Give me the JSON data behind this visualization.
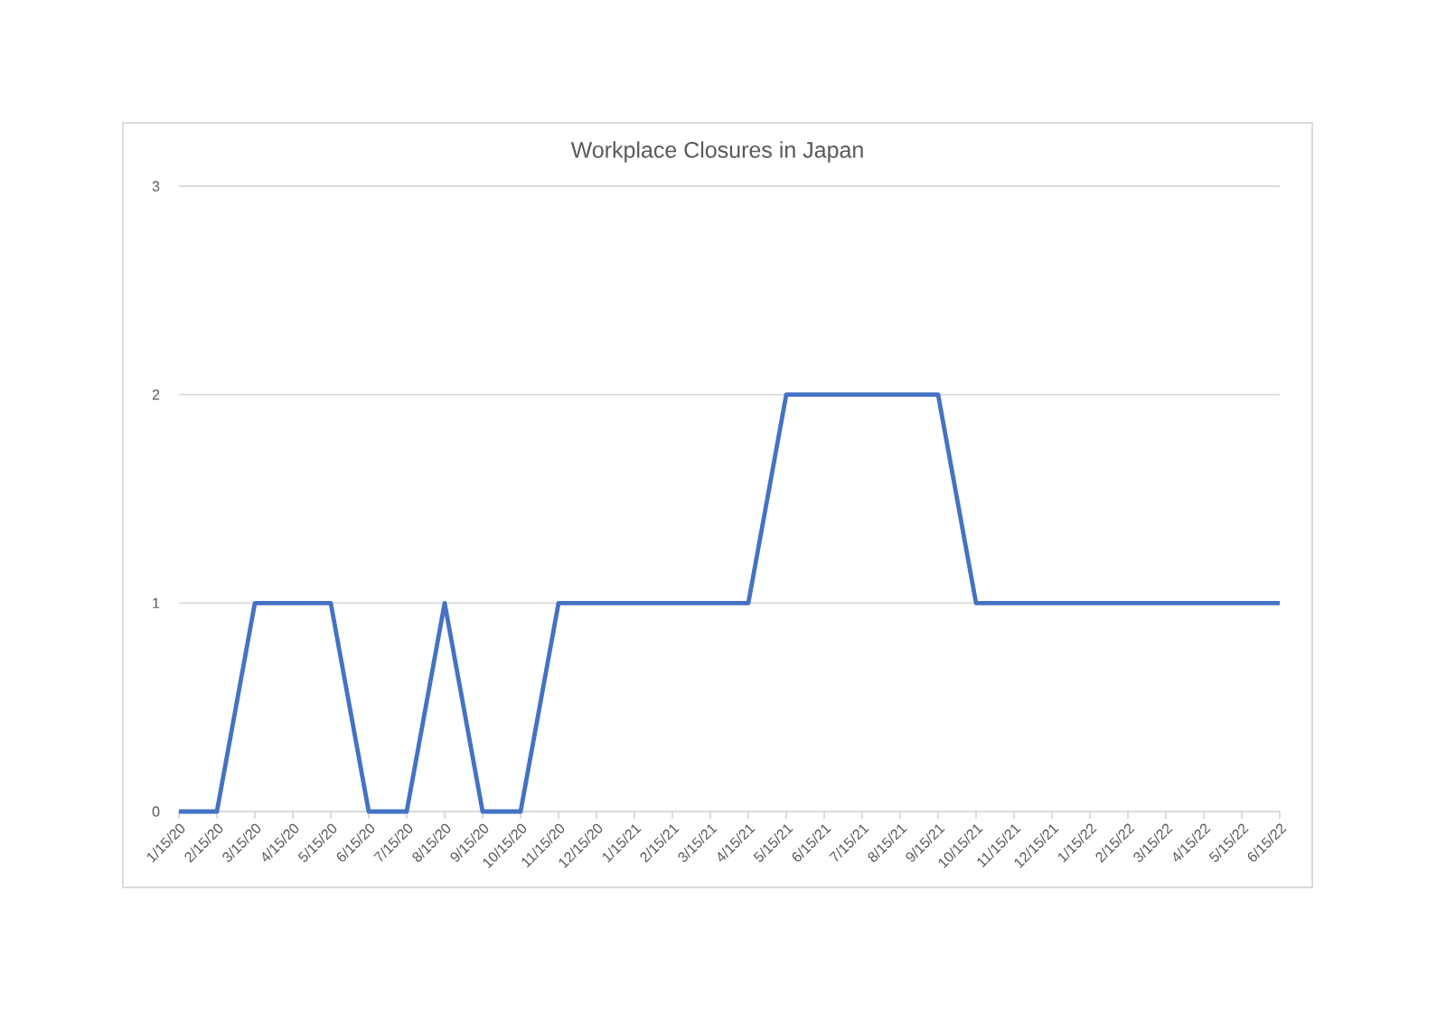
{
  "chart_data": {
    "type": "line",
    "title": "Workplace Closures in Japan",
    "categories": [
      "1/15/20",
      "2/15/20",
      "3/15/20",
      "4/15/20",
      "5/15/20",
      "6/15/20",
      "7/15/20",
      "8/15/20",
      "9/15/20",
      "10/15/20",
      "11/15/20",
      "12/15/20",
      "1/15/21",
      "2/15/21",
      "3/15/21",
      "4/15/21",
      "5/15/21",
      "6/15/21",
      "7/15/21",
      "8/15/21",
      "9/15/21",
      "10/15/21",
      "11/15/21",
      "12/15/21",
      "1/15/22",
      "2/15/22",
      "3/15/22",
      "4/15/22",
      "5/15/22",
      "6/15/22"
    ],
    "values": [
      0,
      0,
      1,
      1,
      1,
      0,
      0,
      1,
      0,
      0,
      1,
      1,
      1,
      1,
      1,
      1,
      2,
      2,
      2,
      2,
      2,
      1,
      1,
      1,
      1,
      1,
      1,
      1,
      1,
      1
    ],
    "color": "#4472c4",
    "ylim": [
      0,
      3
    ],
    "yticks": [
      0,
      1,
      2,
      3
    ],
    "grid": "y",
    "line_style": "solid"
  }
}
